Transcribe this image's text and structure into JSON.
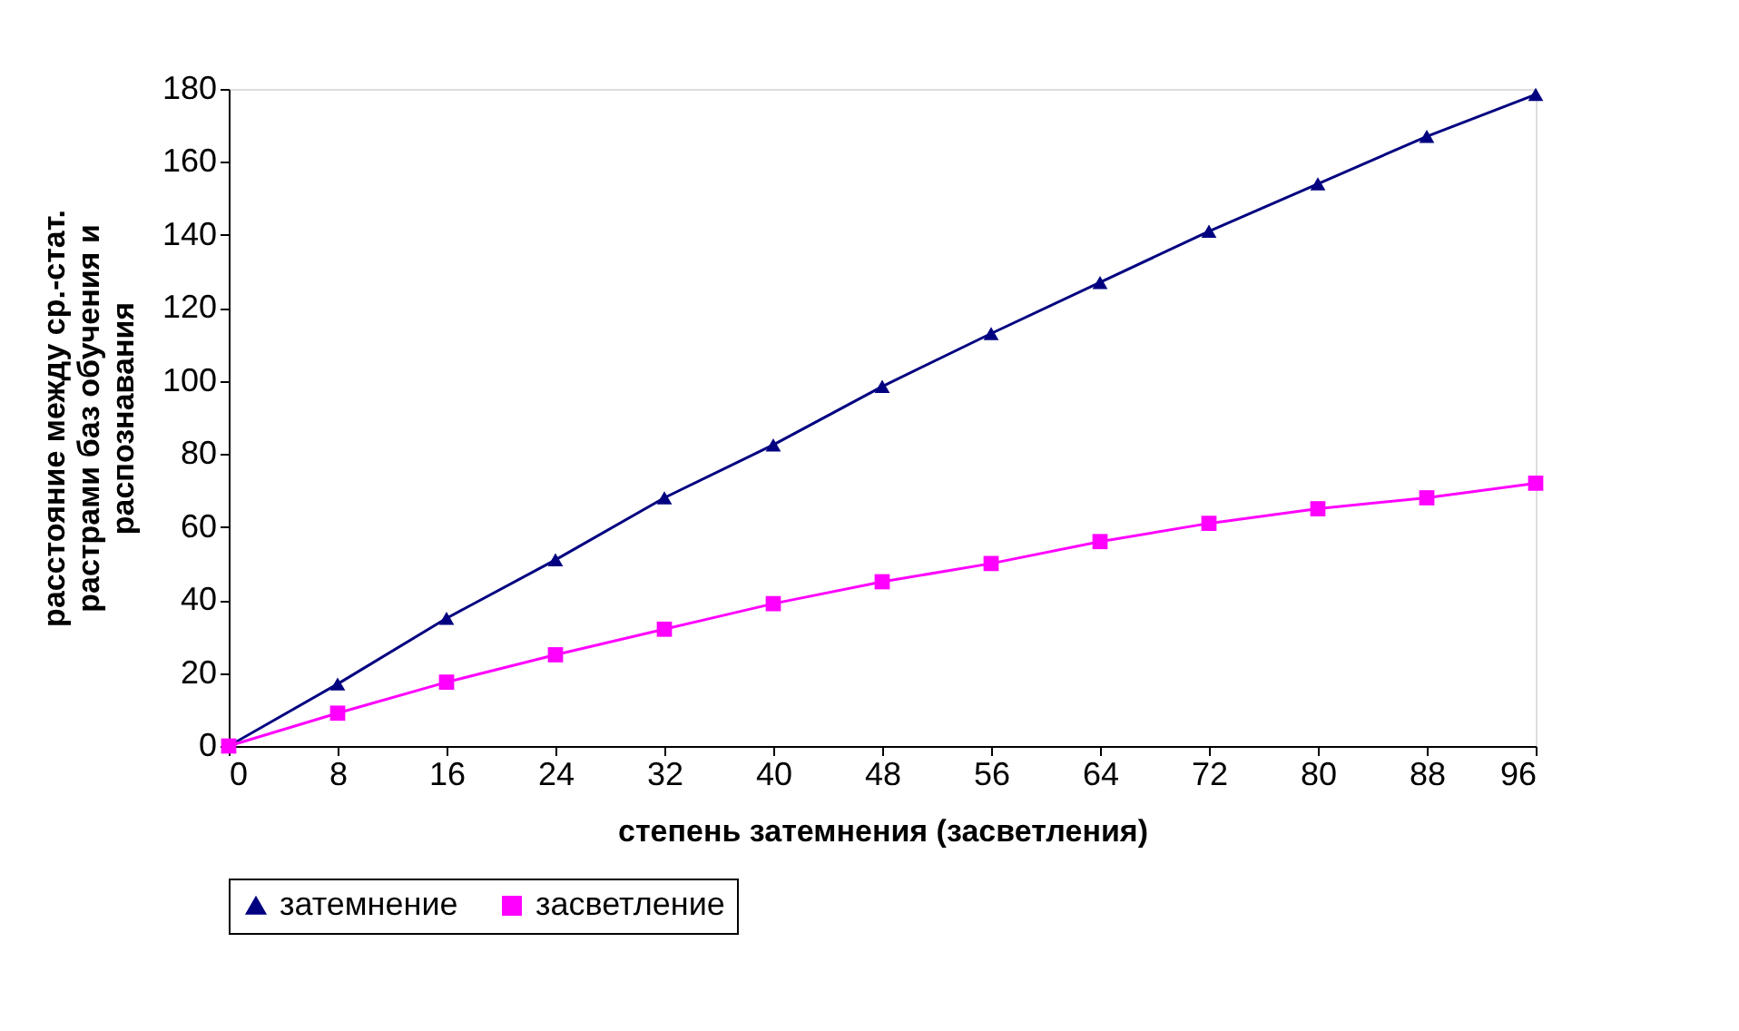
{
  "chart_data": {
    "type": "line",
    "xlabel": "степень затемнения (засветления)",
    "ylabel": "расстояние между ср.-стат.\nрастрами баз обучения и\nраспознавания",
    "x": [
      0,
      8,
      16,
      24,
      32,
      40,
      48,
      56,
      64,
      72,
      80,
      88,
      96
    ],
    "xlim": [
      0,
      96
    ],
    "xticks": [
      0,
      8,
      16,
      24,
      32,
      40,
      48,
      56,
      64,
      72,
      80,
      88,
      96
    ],
    "ylim": [
      0,
      180
    ],
    "yticks": [
      0,
      20,
      40,
      60,
      80,
      100,
      120,
      140,
      160,
      180
    ],
    "grid": false,
    "legend": "bottom",
    "series": [
      {
        "name": "затемнение",
        "color": "#000080",
        "marker": "triangle",
        "values": [
          0,
          17,
          35,
          51,
          68,
          82.5,
          98.5,
          113,
          127,
          141,
          154,
          167,
          178.5
        ]
      },
      {
        "name": "засветление",
        "color": "#ff00ff",
        "marker": "square",
        "values": [
          0,
          9,
          17.5,
          25,
          32,
          39,
          45,
          50,
          56,
          61,
          65,
          68,
          72
        ]
      }
    ]
  }
}
